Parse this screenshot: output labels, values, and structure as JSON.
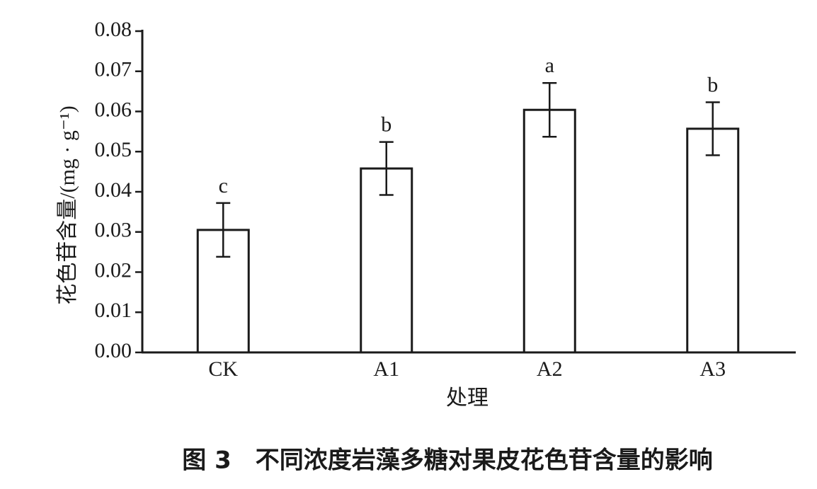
{
  "chart_data": {
    "type": "bar",
    "ylabel": "花色苷含量/(mg · g⁻¹)",
    "xlabel": "处理",
    "caption": "图 3　不同浓度岩藻多糖对果皮花色苷含量的影响",
    "categories": [
      "CK",
      "A1",
      "A2",
      "A3"
    ],
    "values": [
      0.0305,
      0.0458,
      0.0604,
      0.0557
    ],
    "errors": [
      0.0067,
      0.0066,
      0.0067,
      0.0066
    ],
    "letters": [
      "c",
      "b",
      "a",
      "b"
    ],
    "color": "#ffffff",
    "ylim": [
      0,
      0.08
    ],
    "yticks": [
      {
        "value": 0,
        "label": "0.00"
      },
      0.01,
      0.02,
      0.03,
      0.04,
      0.05,
      0.06,
      0.07,
      0.08
    ]
  }
}
